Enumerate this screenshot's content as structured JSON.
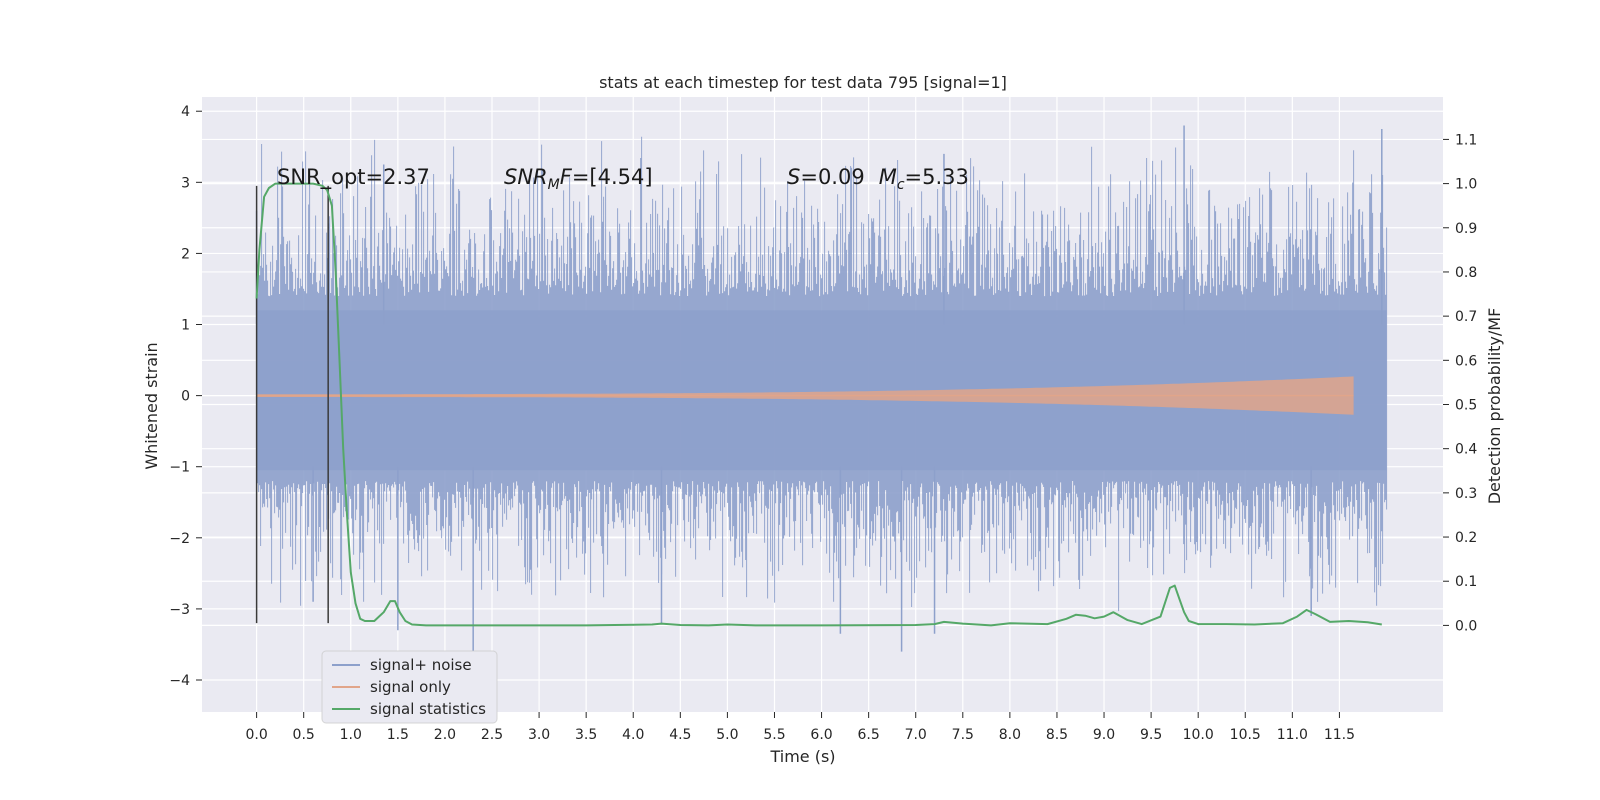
{
  "chart_data": {
    "type": "line",
    "title": "stats at each timestep for test data 795 [signal=1]",
    "xlabel": "Time (s)",
    "ylabel_left": "Whitened strain",
    "ylabel_right": "Detection probability/MF",
    "xlim": [
      -0.58,
      12.6
    ],
    "ylim_left": [
      -4.45,
      4.2
    ],
    "ylim_right": [
      -0.196,
      1.196
    ],
    "x_ticks": [
      0.0,
      0.5,
      1.0,
      1.5,
      2.0,
      2.5,
      3.0,
      3.5,
      4.0,
      4.5,
      5.0,
      5.5,
      6.0,
      6.5,
      7.0,
      7.5,
      8.0,
      8.5,
      9.0,
      9.5,
      10.0,
      10.5,
      11.0,
      11.5
    ],
    "x_tick_labels": [
      "0.0",
      "0.5",
      "1.0",
      "1.5",
      "2.0",
      "2.5",
      "3.0",
      "3.5",
      "4.0",
      "4.5",
      "5.0",
      "5.5",
      "6.0",
      "6.5",
      "7.0",
      "7.5",
      "8.0",
      "8.5",
      "9.0",
      "9.5",
      "10.0",
      "10.5",
      "11.0",
      "11.5"
    ],
    "y_left_ticks": [
      -4,
      -3,
      -2,
      -1,
      0,
      1,
      2,
      3,
      4
    ],
    "y_left_tick_labels": [
      "−4",
      "−3",
      "−2",
      "−1",
      "0",
      "1",
      "2",
      "3",
      "4"
    ],
    "y_right_ticks": [
      0.0,
      0.1,
      0.2,
      0.3,
      0.4,
      0.5,
      0.6,
      0.7,
      0.8,
      0.9,
      1.0,
      1.1
    ],
    "y_right_tick_labels": [
      "0.0",
      "0.1",
      "0.2",
      "0.3",
      "0.4",
      "0.5",
      "0.6",
      "0.7",
      "0.8",
      "0.9",
      "1.0",
      "1.1"
    ],
    "grid": true,
    "legend_position": "lower-left",
    "colors": {
      "background": "#eaeaf2",
      "grid": "#ffffff",
      "signal_noise": "#8da0cb",
      "signal_only": "#e1a58a",
      "signal_statistics": "#55a868",
      "marker": "#3a3a3a"
    },
    "series": [
      {
        "name": "signal+ noise",
        "type": "noise-band",
        "x_range": [
          0.0,
          12.0
        ],
        "typical_extent": [
          -1.8,
          2.3
        ],
        "peaks": [
          [
            0.0,
            2.6
          ],
          [
            1.35,
            3.25
          ],
          [
            7.3,
            3.4
          ],
          [
            9.85,
            3.8
          ],
          [
            11.95,
            3.75
          ],
          [
            2.3,
            -3.6
          ],
          [
            6.85,
            -3.6
          ],
          [
            0.6,
            -2.9
          ],
          [
            1.5,
            -3.3
          ],
          [
            4.3,
            -3.2
          ],
          [
            6.2,
            -3.35
          ],
          [
            7.2,
            -3.35
          ],
          [
            11.2,
            -3.1
          ]
        ]
      },
      {
        "name": "signal only",
        "type": "chirp",
        "x_range": [
          0.0,
          11.65
        ],
        "amplitude_end": 0.25
      },
      {
        "name": "signal statistics",
        "type": "line",
        "axis": "right",
        "x": [
          0.0,
          0.03,
          0.08,
          0.13,
          0.2,
          0.3,
          0.45,
          0.6,
          0.7,
          0.75,
          0.8,
          0.84,
          0.88,
          0.92,
          0.96,
          1.0,
          1.05,
          1.1,
          1.15,
          1.25,
          1.35,
          1.42,
          1.47,
          1.52,
          1.58,
          1.65,
          1.8,
          2.2,
          3.0,
          3.5,
          3.8,
          4.2,
          4.3,
          4.5,
          4.8,
          5.0,
          5.3,
          6.0,
          7.0,
          7.2,
          7.3,
          7.5,
          7.8,
          8.0,
          8.4,
          8.6,
          8.7,
          8.8,
          8.9,
          9.0,
          9.1,
          9.25,
          9.4,
          9.6,
          9.7,
          9.75,
          9.8,
          9.85,
          9.9,
          10.0,
          10.3,
          10.6,
          10.9,
          11.05,
          11.15,
          11.25,
          11.4,
          11.6,
          11.8,
          11.95
        ],
        "values": [
          0.74,
          0.85,
          0.97,
          0.99,
          1.0,
          1.0,
          1.0,
          1.0,
          0.995,
          0.985,
          0.95,
          0.8,
          0.6,
          0.4,
          0.25,
          0.12,
          0.05,
          0.015,
          0.01,
          0.01,
          0.03,
          0.055,
          0.055,
          0.03,
          0.01,
          0.002,
          0.0,
          0.0,
          0.0,
          0.0,
          0.001,
          0.002,
          0.004,
          0.001,
          0.0,
          0.002,
          0.0,
          0.0,
          0.001,
          0.003,
          0.008,
          0.004,
          0.0,
          0.005,
          0.003,
          0.015,
          0.024,
          0.022,
          0.016,
          0.02,
          0.03,
          0.012,
          0.003,
          0.02,
          0.085,
          0.09,
          0.06,
          0.03,
          0.01,
          0.003,
          0.003,
          0.002,
          0.005,
          0.02,
          0.035,
          0.025,
          0.008,
          0.01,
          0.007,
          0.002
        ]
      }
    ],
    "markers": [
      {
        "x": 0.0,
        "y_range": [
          -3.2,
          2.95
        ]
      },
      {
        "x": 0.76,
        "y_range": [
          -3.2,
          2.95
        ]
      }
    ],
    "annotations": [
      {
        "id": "snr-opt",
        "prefix": "SNR_opt=",
        "value": "2.37",
        "x": 0.2,
        "y": 3.0
      },
      {
        "id": "snr-mf",
        "base": "SNR",
        "sub": "M",
        "suffix": "F=",
        "value": "[4.54]",
        "x": 2.6,
        "y": 3.0
      },
      {
        "id": "s-mc",
        "s_label": "S",
        "s_value": "=0.09",
        "m_label": "M",
        "m_sub": "c",
        "m_value": "=5.33",
        "x": 5.6,
        "y": 3.0
      }
    ],
    "legend": {
      "entries": [
        "signal+ noise",
        "signal only",
        "signal statistics"
      ]
    }
  }
}
